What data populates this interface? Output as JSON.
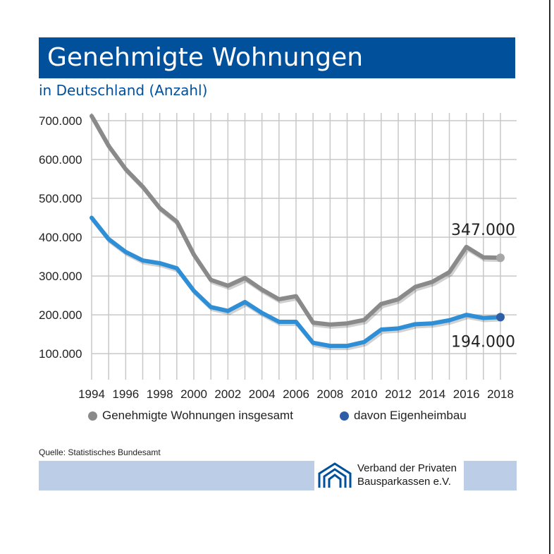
{
  "title": "Genehmigte Wohnungen",
  "subtitle": "in Deutschland (Anzahl)",
  "source": "Quelle: Statistisches Bundesamt",
  "organization": {
    "line1": "Verband der Privaten",
    "line2": "Bausparkassen e.V."
  },
  "colors": {
    "header": "#00509b",
    "series_total": "#8a8a8a",
    "series_home": "#2f8fd6",
    "end_dot_total": "#a6a6a6",
    "end_dot_home": "#2f5ea8",
    "band": "#bccde8",
    "grid": "#c8c8c8"
  },
  "icons": {
    "logo": "house-logo-icon"
  },
  "chart_data": {
    "type": "line",
    "title": "Genehmigte Wohnungen",
    "subtitle": "in Deutschland (Anzahl)",
    "x": [
      1994,
      1995,
      1996,
      1997,
      1998,
      1999,
      2000,
      2001,
      2002,
      2003,
      2004,
      2005,
      2006,
      2007,
      2008,
      2009,
      2010,
      2011,
      2012,
      2013,
      2014,
      2015,
      2016,
      2017,
      2018
    ],
    "x_tick_labels": [
      "1994",
      "1996",
      "1998",
      "2000",
      "2002",
      "2004",
      "2006",
      "2008",
      "2010",
      "2012",
      "2014",
      "2016",
      "2018"
    ],
    "y_tick_labels": [
      "100.000",
      "200.000",
      "300.000",
      "400.000",
      "500.000",
      "600.000",
      "700.000"
    ],
    "y_ticks": [
      100000,
      200000,
      300000,
      400000,
      500000,
      600000,
      700000
    ],
    "xlim": [
      1994,
      2018
    ],
    "ylim": [
      33000,
      720000
    ],
    "grid": true,
    "legend_position": "bottom",
    "series": [
      {
        "name": "Genehmigte Wohnungen insgesamt",
        "values": [
          712000,
          635000,
          575000,
          530000,
          475000,
          440000,
          355000,
          290000,
          275000,
          295000,
          265000,
          240000,
          248000,
          180000,
          175000,
          178000,
          187000,
          228000,
          240000,
          272000,
          285000,
          310000,
          375000,
          348000,
          347000
        ]
      },
      {
        "name": "davon Eigenheimbau",
        "values": [
          450000,
          395000,
          362000,
          340000,
          333000,
          320000,
          262000,
          220000,
          210000,
          233000,
          205000,
          182000,
          182000,
          128000,
          120000,
          120000,
          130000,
          162000,
          165000,
          176000,
          178000,
          186000,
          200000,
          192000,
          194000
        ]
      }
    ],
    "annotations": [
      {
        "text": "347.000",
        "series": 0,
        "x": 2018
      },
      {
        "text": "194.000",
        "series": 1,
        "x": 2018
      }
    ]
  }
}
